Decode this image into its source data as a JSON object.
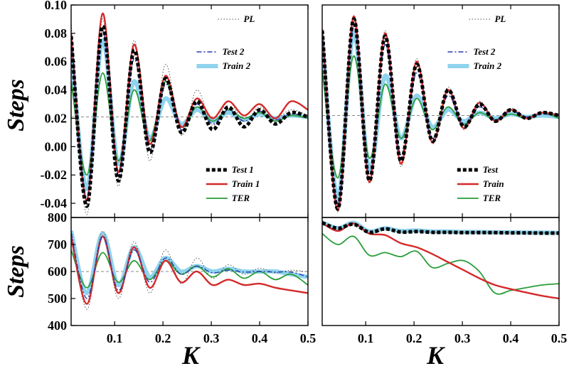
{
  "figure": {
    "ylabel_top": "Steps",
    "ylabel_bottom": "Steps",
    "xlabel_left": "K",
    "xlabel_right": "K"
  },
  "colors": {
    "pl": "#555555",
    "test": "#000000",
    "train": "#d42a2a",
    "ter": "#2a9d3a",
    "test2": "#2a3aa8",
    "train2": "#8fd3ee",
    "ref": "#888888"
  },
  "chart_data": [
    {
      "type": "line",
      "id": "top-left",
      "xlim": [
        0.01,
        0.5
      ],
      "ylim": [
        -0.05,
        0.1
      ],
      "xticks": [
        0.1,
        0.2,
        0.3,
        0.4,
        0.5
      ],
      "yticks": [
        -0.04,
        -0.02,
        0.0,
        0.02,
        0.04,
        0.06,
        0.08,
        0.1
      ],
      "ytick_labels": [
        "-0.04",
        "-0.02",
        "0.00",
        "0.02",
        "0.04",
        "0.06",
        "0.08",
        "0.10"
      ],
      "reference_y": 0.021,
      "x": [
        0.01,
        0.0425,
        0.075,
        0.1075,
        0.14,
        0.1725,
        0.205,
        0.2375,
        0.27,
        0.3025,
        0.335,
        0.3675,
        0.4,
        0.4325,
        0.465,
        0.5
      ],
      "series": [
        {
          "name": "PL",
          "style": "dotted",
          "values": [
            0.088,
            -0.048,
            0.09,
            -0.028,
            0.075,
            -0.01,
            0.058,
            0.008,
            0.04,
            0.015,
            0.032,
            0.018,
            0.028,
            0.02,
            0.026,
            0.022
          ]
        },
        {
          "name": "Test 1",
          "style": "dashed-thick",
          "values": [
            0.078,
            -0.042,
            0.085,
            -0.024,
            0.068,
            -0.004,
            0.048,
            0.01,
            0.032,
            0.012,
            0.028,
            0.014,
            0.026,
            0.016,
            0.024,
            0.021
          ]
        },
        {
          "name": "Train 1",
          "style": "solid",
          "values": [
            0.08,
            -0.038,
            0.094,
            -0.018,
            0.072,
            0.002,
            0.05,
            0.014,
            0.034,
            0.02,
            0.032,
            0.022,
            0.03,
            0.02,
            0.032,
            0.026
          ]
        },
        {
          "name": "TER",
          "style": "solid",
          "values": [
            0.046,
            -0.02,
            0.052,
            -0.01,
            0.04,
            0.004,
            0.046,
            0.014,
            0.028,
            0.018,
            0.026,
            0.02,
            0.024,
            0.018,
            0.022,
            0.02
          ]
        },
        {
          "name": "Test 2",
          "style": "dashdot",
          "values": [
            0.075,
            -0.036,
            0.082,
            -0.02,
            0.062,
            -0.002,
            0.044,
            0.012,
            0.03,
            0.016,
            0.026,
            0.018,
            0.025,
            0.019,
            0.023,
            0.021
          ]
        },
        {
          "name": "Train 2",
          "style": "solid-thick",
          "values": [
            0.07,
            -0.03,
            0.075,
            -0.012,
            0.046,
            0.006,
            0.034,
            0.016,
            0.026,
            0.018,
            0.024,
            0.019,
            0.023,
            0.02,
            0.022,
            0.021
          ]
        }
      ],
      "legend_top": [
        "PL",
        "Test 2",
        "Train 2"
      ],
      "legend_bottom": [
        "Test 1",
        "Train 1",
        "TER"
      ]
    },
    {
      "type": "line",
      "id": "top-right",
      "xlim": [
        0.01,
        0.5
      ],
      "ylim": [
        -0.05,
        0.1
      ],
      "xticks": [
        0.1,
        0.2,
        0.3,
        0.4,
        0.5
      ],
      "reference_y": 0.022,
      "x": [
        0.01,
        0.0425,
        0.075,
        0.1075,
        0.14,
        0.1725,
        0.205,
        0.2375,
        0.27,
        0.3025,
        0.335,
        0.3675,
        0.4,
        0.4325,
        0.465,
        0.5
      ],
      "series": [
        {
          "name": "PL",
          "style": "dotted",
          "values": [
            0.082,
            -0.046,
            0.092,
            -0.026,
            0.082,
            -0.014,
            0.062,
            0.002,
            0.042,
            0.012,
            0.032,
            0.018,
            0.027,
            0.02,
            0.024,
            0.022
          ]
        },
        {
          "name": "Test",
          "style": "dashed-thick",
          "values": [
            0.082,
            -0.044,
            0.09,
            -0.024,
            0.078,
            -0.01,
            0.058,
            0.004,
            0.04,
            0.014,
            0.03,
            0.018,
            0.026,
            0.02,
            0.024,
            0.022
          ]
        },
        {
          "name": "Train",
          "style": "solid",
          "values": [
            0.083,
            -0.045,
            0.092,
            -0.025,
            0.08,
            -0.012,
            0.06,
            0.003,
            0.04,
            0.013,
            0.031,
            0.018,
            0.026,
            0.02,
            0.024,
            0.022
          ]
        },
        {
          "name": "TER",
          "style": "solid",
          "values": [
            0.054,
            -0.022,
            0.064,
            -0.008,
            0.044,
            0.006,
            0.034,
            0.012,
            0.028,
            0.016,
            0.024,
            0.019,
            0.023,
            0.02,
            0.024,
            0.02
          ]
        },
        {
          "name": "Test 2",
          "style": "dashdot",
          "values": [
            0.08,
            -0.04,
            0.085,
            -0.02,
            0.072,
            -0.006,
            0.052,
            0.006,
            0.036,
            0.015,
            0.028,
            0.019,
            0.025,
            0.021,
            0.023,
            0.022
          ]
        },
        {
          "name": "Train 2",
          "style": "solid-thick",
          "values": [
            0.076,
            -0.036,
            0.08,
            -0.016,
            0.05,
            0.006,
            0.036,
            0.014,
            0.026,
            0.018,
            0.024,
            0.02,
            0.023,
            0.021,
            0.022,
            0.021
          ]
        }
      ],
      "legend_top": [
        "PL",
        "Test 2",
        "Train 2"
      ],
      "legend_bottom": [
        "Test",
        "Train",
        "TER"
      ]
    },
    {
      "type": "line",
      "id": "bottom-left",
      "xlim": [
        0.01,
        0.5
      ],
      "ylim": [
        400,
        800
      ],
      "xticks": [
        0.1,
        0.2,
        0.3,
        0.4,
        0.5
      ],
      "xtick_labels": [
        "0.1",
        "0.2",
        "0.3",
        "0.4",
        "0.5"
      ],
      "yticks": [
        400,
        500,
        600,
        700,
        800
      ],
      "ytick_labels": [
        "400",
        "500",
        "600",
        "700",
        "800"
      ],
      "reference_y": 600,
      "x": [
        0.01,
        0.0425,
        0.075,
        0.1075,
        0.14,
        0.1725,
        0.205,
        0.2375,
        0.27,
        0.3025,
        0.335,
        0.3675,
        0.4,
        0.4325,
        0.465,
        0.5
      ],
      "series": [
        {
          "name": "PL",
          "style": "dotted",
          "values": [
            760,
            460,
            750,
            500,
            710,
            520,
            680,
            555,
            650,
            575,
            625,
            590,
            612,
            595,
            605,
            598
          ]
        },
        {
          "name": "Train 1",
          "style": "solid",
          "values": [
            730,
            480,
            730,
            520,
            690,
            540,
            640,
            560,
            600,
            550,
            570,
            550,
            555,
            540,
            530,
            520
          ]
        },
        {
          "name": "TER",
          "style": "solid",
          "values": [
            680,
            540,
            670,
            560,
            640,
            570,
            640,
            590,
            620,
            580,
            610,
            575,
            600,
            570,
            590,
            550
          ]
        },
        {
          "name": "Test 2",
          "style": "dashdot",
          "values": [
            745,
            500,
            730,
            530,
            680,
            560,
            650,
            590,
            620,
            595,
            605,
            598,
            600,
            598,
            598,
            580
          ]
        },
        {
          "name": "Train 2",
          "style": "solid-thick",
          "values": [
            750,
            520,
            740,
            550,
            690,
            580,
            650,
            600,
            620,
            600,
            610,
            600,
            600,
            600,
            590,
            580
          ]
        }
      ]
    },
    {
      "type": "line",
      "id": "bottom-right",
      "xlim": [
        0.01,
        0.5
      ],
      "ylim": [
        400,
        800
      ],
      "xticks": [
        0.1,
        0.2,
        0.3,
        0.4,
        0.5
      ],
      "xtick_labels": [
        "0.1",
        "0.2",
        "0.3",
        "0.4",
        "0.5"
      ],
      "x": [
        0.01,
        0.0425,
        0.075,
        0.1075,
        0.14,
        0.1725,
        0.205,
        0.2375,
        0.27,
        0.3025,
        0.335,
        0.3675,
        0.4,
        0.4325,
        0.465,
        0.5
      ],
      "series": [
        {
          "name": "PL",
          "style": "dotted",
          "values": [
            780,
            755,
            780,
            740,
            760,
            745,
            750,
            745,
            746,
            744,
            745,
            744,
            744,
            743,
            743,
            742
          ]
        },
        {
          "name": "Test",
          "style": "dashed-thick",
          "values": [
            780,
            760,
            775,
            745,
            758,
            746,
            748,
            745,
            745,
            744,
            744,
            744,
            743,
            743,
            742,
            742
          ]
        },
        {
          "name": "Train",
          "style": "solid",
          "values": [
            780,
            750,
            778,
            740,
            735,
            705,
            690,
            665,
            635,
            605,
            575,
            550,
            535,
            522,
            510,
            500
          ]
        },
        {
          "name": "TER",
          "style": "solid",
          "values": [
            740,
            700,
            730,
            660,
            670,
            655,
            675,
            615,
            630,
            640,
            600,
            520,
            530,
            540,
            550,
            555
          ]
        },
        {
          "name": "Train 2",
          "style": "solid-thick",
          "values": [
            782,
            760,
            780,
            748,
            760,
            750,
            752,
            748,
            748,
            746,
            746,
            745,
            745,
            744,
            744,
            743
          ]
        }
      ]
    }
  ]
}
